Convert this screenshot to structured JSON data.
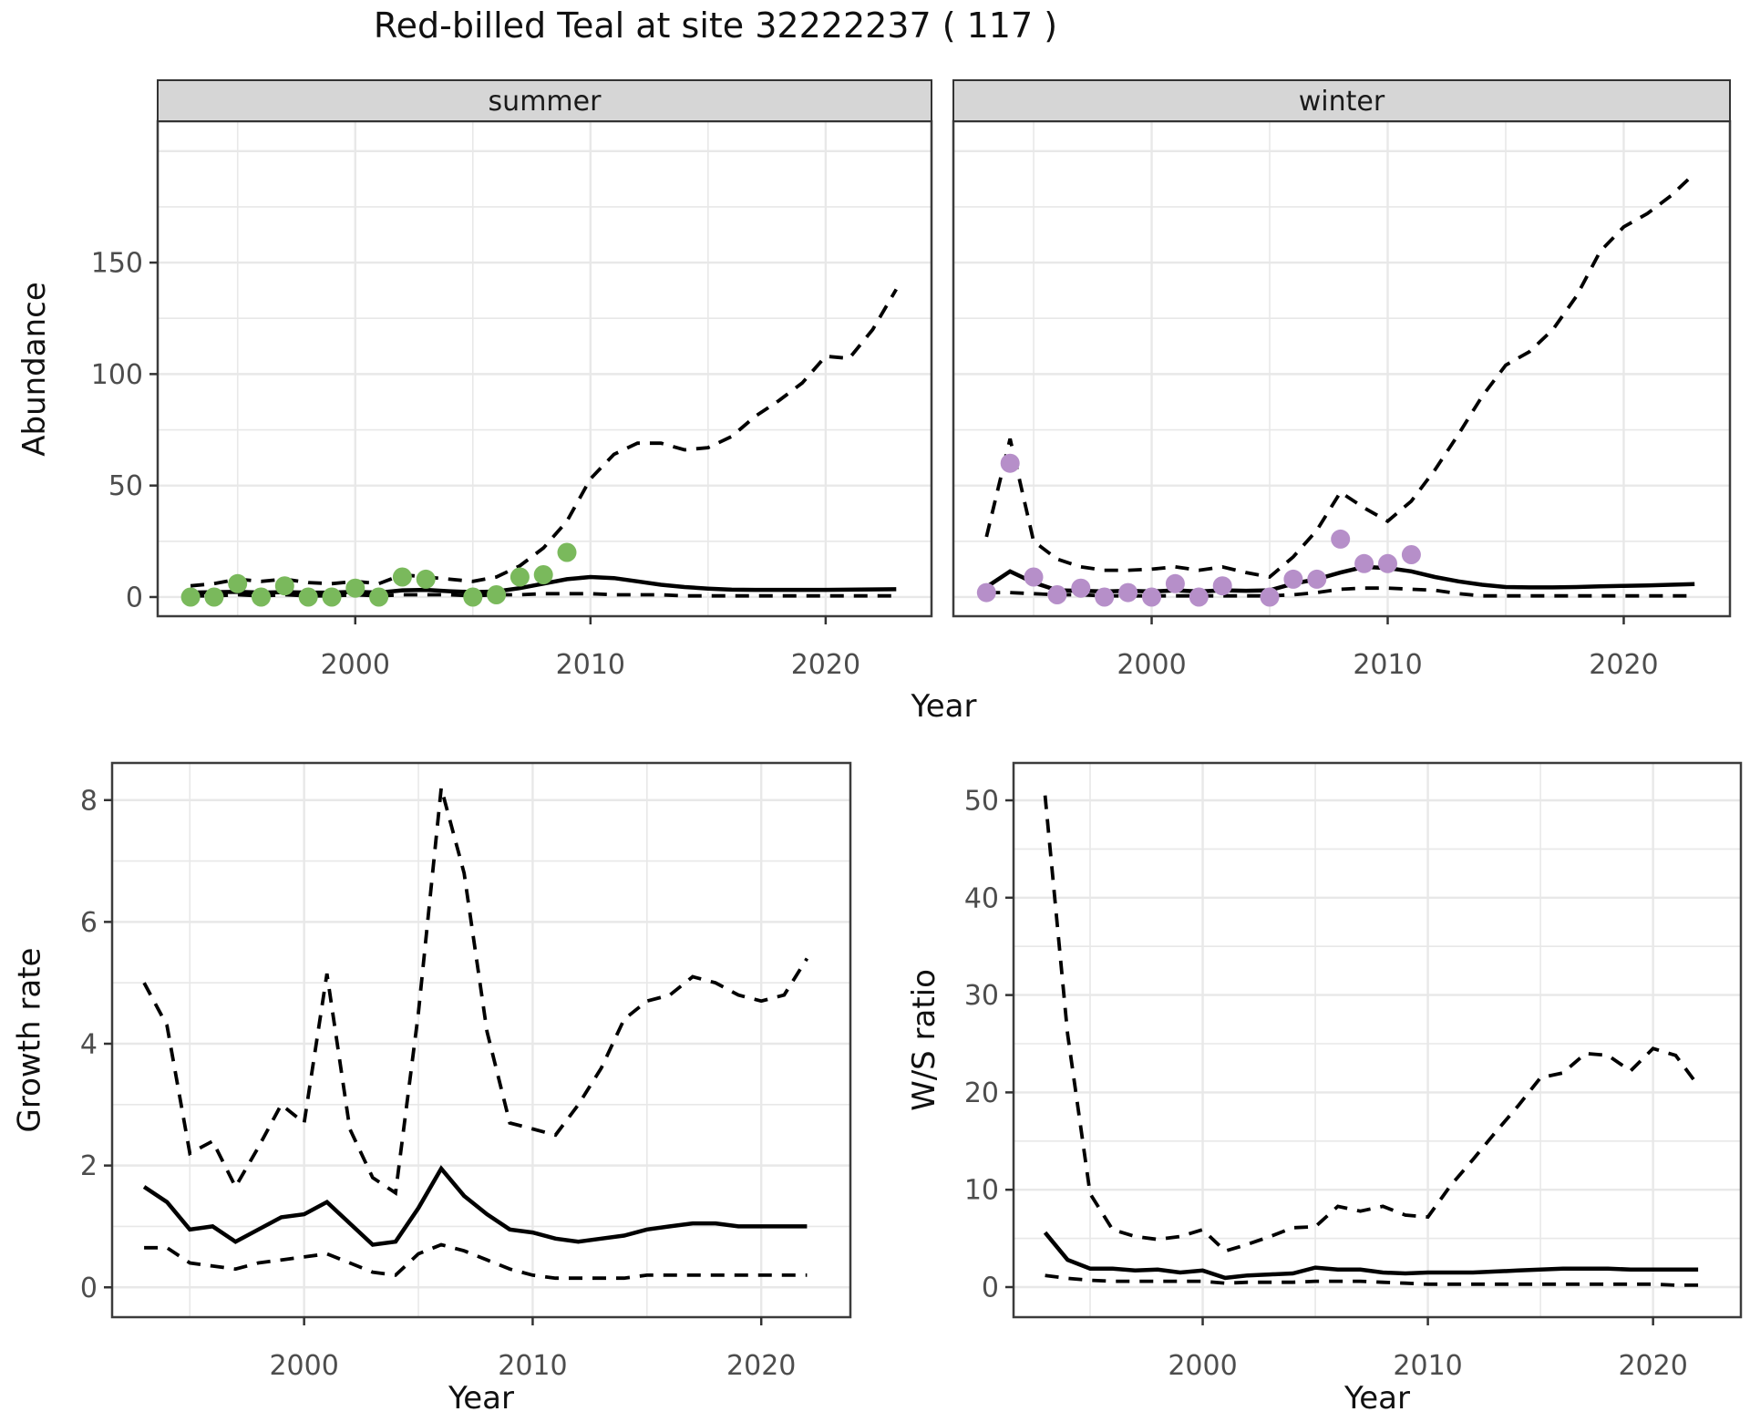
{
  "title": "Red-billed Teal at site 32222237 ( 117 )",
  "axes": {
    "x_title": "Year",
    "abundance_title": "Abundance",
    "growth_title": "Growth rate",
    "ws_title": "W/S ratio"
  },
  "facets": {
    "summer_label": "summer",
    "winter_label": "winter"
  },
  "colors": {
    "summer_point": "#7ab95c",
    "winter_point": "#b68fc9",
    "line": "#000000",
    "strip_bg": "#d6d6d6",
    "strip_border": "#333333",
    "panel_border": "#3c3c3c",
    "grid": "#e8e8e8",
    "tick": "#333333",
    "tick_label": "#4d4d4d"
  },
  "chart_data": [
    {
      "type": "line",
      "id": "abundance_summer",
      "facet": "summer",
      "xlabel": "Year",
      "ylabel": "Abundance",
      "x_ticks": [
        2000,
        2010,
        2020
      ],
      "x_minor": [
        1995,
        2005,
        2015
      ],
      "y_ticks": [
        0,
        50,
        100,
        150
      ],
      "y_major_grid": [
        0,
        50,
        100,
        150,
        200
      ],
      "y_minor_grid": [
        25,
        75,
        125,
        175
      ],
      "xlim": [
        1991.6,
        2024.5
      ],
      "ylim": [
        -8.6,
        213.4
      ],
      "years": [
        1993,
        1994,
        1995,
        1996,
        1997,
        1998,
        1999,
        2000,
        2001,
        2002,
        2003,
        2004,
        2005,
        2006,
        2007,
        2008,
        2009,
        2010,
        2011,
        2012,
        2013,
        2014,
        2015,
        2016,
        2017,
        2018,
        2019,
        2020,
        2021,
        2022,
        2023
      ],
      "series": [
        {
          "name": "fit_mean",
          "style": "solid",
          "values": [
            2,
            2.2,
            2.3,
            2,
            2.2,
            2,
            2,
            2.3,
            2,
            3,
            3.2,
            2.6,
            2.2,
            2.5,
            4,
            6,
            8,
            9,
            8.5,
            7,
            5.5,
            4.5,
            3.8,
            3.3,
            3.2,
            3.2,
            3.2,
            3.2,
            3.3,
            3.4,
            3.5
          ]
        },
        {
          "name": "ci_upper",
          "style": "dashed",
          "values": [
            5,
            6,
            8,
            7,
            8,
            6.5,
            6,
            7,
            6,
            10,
            9,
            8,
            7,
            9,
            14,
            22,
            34,
            53,
            64,
            69,
            69,
            66,
            67,
            72,
            81,
            88,
            96,
            108,
            107,
            120,
            138
          ]
        },
        {
          "name": "ci_lower",
          "style": "dashed",
          "values": [
            0.5,
            0.5,
            1,
            0.5,
            1,
            0.5,
            0.5,
            1,
            0.5,
            1,
            1,
            1,
            0.5,
            1,
            1,
            1.5,
            1.5,
            1.5,
            1,
            1,
            1,
            0.5,
            0.5,
            0.5,
            0.5,
            0.5,
            0.5,
            0.5,
            0.5,
            0.5,
            0.5
          ]
        }
      ],
      "points": {
        "name": "observed_counts_summer",
        "years": [
          1993,
          1994,
          1995,
          1996,
          1997,
          1998,
          1999,
          2000,
          2001,
          2002,
          2003,
          2005,
          2006,
          2007,
          2008,
          2009
        ],
        "values": [
          0,
          0,
          6,
          0,
          5,
          0,
          0,
          4,
          0,
          9,
          8,
          0,
          1,
          9,
          10,
          20
        ]
      }
    },
    {
      "type": "line",
      "id": "abundance_winter",
      "facet": "winter",
      "xlabel": "Year",
      "ylabel": "Abundance",
      "x_ticks": [
        2000,
        2010,
        2020
      ],
      "x_minor": [
        1995,
        2005,
        2015
      ],
      "y_ticks": [],
      "y_major_grid": [
        0,
        50,
        100,
        150,
        200
      ],
      "y_minor_grid": [
        25,
        75,
        125,
        175
      ],
      "xlim": [
        1991.6,
        2024.5
      ],
      "ylim": [
        -8.6,
        213.4
      ],
      "years": [
        1993,
        1994,
        1995,
        1996,
        1997,
        1998,
        1999,
        2000,
        2001,
        2002,
        2003,
        2004,
        2005,
        2006,
        2007,
        2008,
        2009,
        2010,
        2011,
        2012,
        2013,
        2014,
        2015,
        2016,
        2017,
        2018,
        2019,
        2020,
        2021,
        2022,
        2023
      ],
      "series": [
        {
          "name": "fit_mean",
          "style": "solid",
          "values": [
            4.5,
            11.5,
            6.5,
            3,
            2.8,
            2.5,
            2.8,
            2.5,
            3,
            2.5,
            3,
            2.8,
            3,
            6,
            8,
            11,
            13.5,
            13,
            11.5,
            9,
            7,
            5.5,
            4.5,
            4.3,
            4.3,
            4.5,
            4.8,
            5,
            5.2,
            5.5,
            5.8
          ]
        },
        {
          "name": "ci_upper",
          "style": "dashed",
          "values": [
            27,
            71,
            25,
            17,
            13.5,
            12,
            12,
            12.5,
            13.5,
            12,
            13.5,
            11,
            9,
            18,
            30,
            47,
            40,
            34,
            43,
            57,
            73,
            90,
            104,
            110,
            120,
            135,
            155,
            166,
            172,
            180,
            190
          ]
        },
        {
          "name": "ci_lower",
          "style": "dashed",
          "values": [
            2,
            2,
            1.5,
            1,
            1,
            0.5,
            0.5,
            0.5,
            0.5,
            0.5,
            0.5,
            0.5,
            0.5,
            1,
            2,
            3.5,
            4,
            4,
            3.5,
            3,
            1.5,
            0.5,
            0.5,
            0.5,
            0.5,
            0.5,
            0.5,
            0.5,
            0.5,
            0.5,
            0.5
          ]
        }
      ],
      "points": {
        "name": "observed_counts_winter",
        "years": [
          1993,
          1994,
          1995,
          1996,
          1997,
          1998,
          1999,
          2000,
          2001,
          2002,
          2003,
          2005,
          2006,
          2007,
          2008,
          2009,
          2010,
          2011
        ],
        "values": [
          2,
          60,
          9,
          1,
          4,
          0,
          2,
          0,
          6,
          0,
          5,
          0,
          8,
          8,
          26,
          15,
          15,
          19
        ]
      }
    },
    {
      "type": "line",
      "id": "growth_rate",
      "facet": null,
      "xlabel": "Year",
      "ylabel": "Growth rate",
      "x_ticks": [
        2000,
        2010,
        2020
      ],
      "x_minor": [
        1995,
        2005,
        2015
      ],
      "y_ticks": [
        0,
        2,
        4,
        6,
        8
      ],
      "y_major_grid": [
        0,
        2,
        4,
        6,
        8
      ],
      "y_minor_grid": [
        1,
        3,
        5,
        7
      ],
      "xlim": [
        1991.6,
        2023.9
      ],
      "ylim": [
        -0.49,
        8.61
      ],
      "years": [
        1993,
        1994,
        1995,
        1996,
        1997,
        1998,
        1999,
        2000,
        2001,
        2002,
        2003,
        2004,
        2005,
        2006,
        2007,
        2008,
        2009,
        2010,
        2011,
        2012,
        2013,
        2014,
        2015,
        2016,
        2017,
        2018,
        2019,
        2020,
        2021,
        2022
      ],
      "series": [
        {
          "name": "growth_mean",
          "style": "solid",
          "values": [
            1.65,
            1.4,
            0.95,
            1.0,
            0.75,
            0.95,
            1.15,
            1.2,
            1.4,
            1.05,
            0.7,
            0.75,
            1.3,
            1.95,
            1.5,
            1.2,
            0.95,
            0.9,
            0.8,
            0.75,
            0.8,
            0.85,
            0.95,
            1.0,
            1.05,
            1.05,
            1.0,
            1.0,
            1.0,
            1.0
          ]
        },
        {
          "name": "growth_upper",
          "style": "dashed",
          "values": [
            5.0,
            4.3,
            2.2,
            2.4,
            1.65,
            2.3,
            3.0,
            2.7,
            5.15,
            2.6,
            1.8,
            1.55,
            4.5,
            8.2,
            6.8,
            4.2,
            2.7,
            2.6,
            2.5,
            3.0,
            3.6,
            4.4,
            4.7,
            4.8,
            5.1,
            5.0,
            4.8,
            4.7,
            4.8,
            5.4
          ]
        },
        {
          "name": "growth_lower",
          "style": "dashed",
          "values": [
            0.65,
            0.65,
            0.4,
            0.35,
            0.3,
            0.4,
            0.45,
            0.5,
            0.55,
            0.4,
            0.25,
            0.2,
            0.55,
            0.7,
            0.6,
            0.45,
            0.3,
            0.2,
            0.15,
            0.15,
            0.15,
            0.15,
            0.2,
            0.2,
            0.2,
            0.2,
            0.2,
            0.2,
            0.2,
            0.2
          ]
        }
      ],
      "points": null
    },
    {
      "type": "line",
      "id": "ws_ratio",
      "facet": null,
      "xlabel": "Year",
      "ylabel": "W/S ratio",
      "x_ticks": [
        2000,
        2010,
        2020
      ],
      "x_minor": [
        1995,
        2005,
        2015
      ],
      "y_ticks": [
        0,
        10,
        20,
        30,
        40,
        50
      ],
      "y_major_grid": [
        0,
        10,
        20,
        30,
        40,
        50
      ],
      "y_minor_grid": [
        5,
        15,
        25,
        35,
        45
      ],
      "xlim": [
        1991.6,
        2023.9
      ],
      "ylim": [
        -3.09,
        53.84
      ],
      "years": [
        1993,
        1994,
        1995,
        1996,
        1997,
        1998,
        1999,
        2000,
        2001,
        2002,
        2003,
        2004,
        2005,
        2006,
        2007,
        2008,
        2009,
        2010,
        2011,
        2012,
        2013,
        2014,
        2015,
        2016,
        2017,
        2018,
        2019,
        2020,
        2021,
        2022
      ],
      "series": [
        {
          "name": "ws_mean",
          "style": "solid",
          "values": [
            5.6,
            2.8,
            1.9,
            1.9,
            1.7,
            1.8,
            1.5,
            1.7,
            0.95,
            1.2,
            1.3,
            1.4,
            2.0,
            1.8,
            1.8,
            1.5,
            1.4,
            1.5,
            1.5,
            1.5,
            1.6,
            1.7,
            1.8,
            1.9,
            1.9,
            1.9,
            1.8,
            1.8,
            1.8,
            1.8
          ]
        },
        {
          "name": "ws_upper",
          "style": "dashed",
          "values": [
            50.5,
            26,
            9.6,
            5.9,
            5.2,
            4.9,
            5.2,
            5.9,
            3.7,
            4.4,
            5.2,
            6.1,
            6.2,
            8.3,
            7.8,
            8.3,
            7.4,
            7.2,
            10.4,
            13.1,
            15.9,
            18.6,
            21.5,
            22.0,
            24.0,
            23.8,
            22.2,
            24.5,
            23.8,
            20.7
          ]
        },
        {
          "name": "ws_lower",
          "style": "dashed",
          "values": [
            1.2,
            0.9,
            0.7,
            0.6,
            0.6,
            0.6,
            0.6,
            0.6,
            0.4,
            0.5,
            0.5,
            0.5,
            0.6,
            0.6,
            0.6,
            0.5,
            0.4,
            0.3,
            0.3,
            0.3,
            0.3,
            0.3,
            0.3,
            0.3,
            0.3,
            0.3,
            0.3,
            0.3,
            0.2,
            0.2
          ]
        }
      ],
      "points": null
    }
  ]
}
